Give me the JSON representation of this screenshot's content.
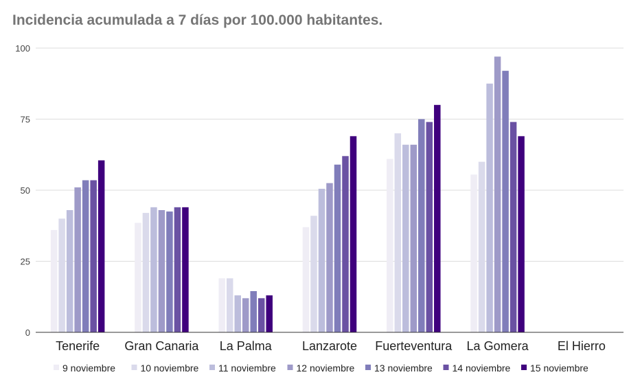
{
  "chart_data": {
    "type": "bar",
    "title": "Incidencia acumulada a 7 días por 100.000 habitantes.",
    "xlabel": "",
    "ylabel": "",
    "ylim": [
      0,
      100
    ],
    "yticks": [
      "0",
      "25",
      "50",
      "75",
      "100"
    ],
    "grid": true,
    "legend_position": "bottom",
    "categories": [
      "Tenerife",
      "Gran Canaria",
      "La Palma",
      "Lanzarote",
      "Fuerteventura",
      "La Gomera",
      "El Hierro"
    ],
    "series": [
      {
        "name": "9 noviembre",
        "color": "#efedf5",
        "values": [
          36,
          38.5,
          19,
          37,
          61,
          55.5,
          0
        ]
      },
      {
        "name": "10 noviembre",
        "color": "#dadaeb",
        "values": [
          40,
          42,
          19,
          41,
          70,
          60,
          0
        ]
      },
      {
        "name": "11 noviembre",
        "color": "#bcbddc",
        "values": [
          43,
          44,
          13,
          50.5,
          66,
          87.5,
          0
        ]
      },
      {
        "name": "12 noviembre",
        "color": "#9e9ac8",
        "values": [
          51,
          43,
          12,
          52.5,
          66,
          97,
          0
        ]
      },
      {
        "name": "13 noviembre",
        "color": "#807dba",
        "values": [
          53.5,
          42.5,
          14.5,
          59,
          75,
          92,
          0
        ]
      },
      {
        "name": "14 noviembre",
        "color": "#6a51a3",
        "values": [
          53.5,
          44,
          12,
          62,
          74,
          74,
          0
        ]
      },
      {
        "name": "15 noviembre",
        "color": "#3f007d",
        "values": [
          60.5,
          44,
          13,
          69,
          80,
          69,
          0
        ]
      }
    ]
  }
}
